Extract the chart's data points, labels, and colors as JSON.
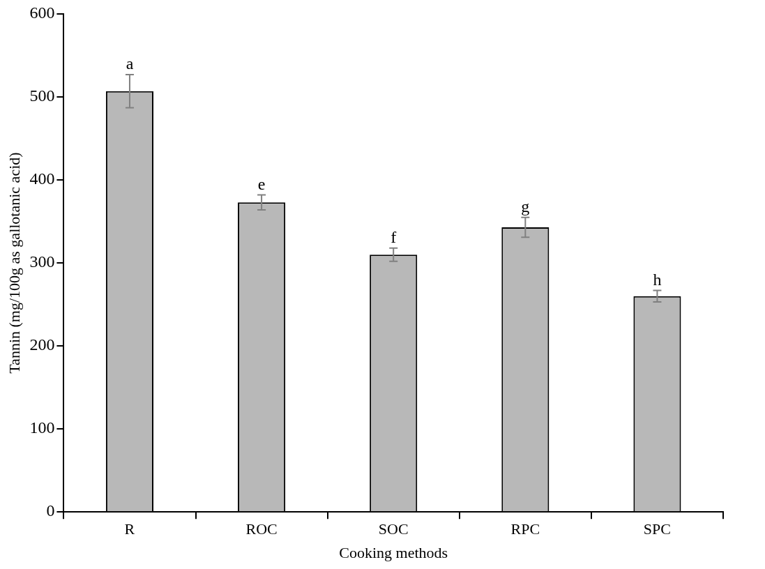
{
  "chart_data": {
    "type": "bar",
    "xlabel": "Cooking methods",
    "ylabel": "Tannin (mg/100g as gallotanic acid)",
    "categories": [
      "R",
      "ROC",
      "SOC",
      "RPC",
      "SPC"
    ],
    "values": [
      507,
      373,
      310,
      343,
      260
    ],
    "errors": [
      20,
      9,
      8,
      12,
      7
    ],
    "color": "#b8b8b8",
    "ylim": [
      0,
      600
    ],
    "yticks": [
      0,
      100,
      200,
      300,
      400,
      500,
      600
    ],
    "annotations": [
      {
        "text": "a",
        "x": "R",
        "y": 527
      },
      {
        "text": "e",
        "x": "ROC",
        "y": 382
      },
      {
        "text": "f",
        "x": "SOC",
        "y": 318
      },
      {
        "text": "g",
        "x": "RPC",
        "y": 355
      },
      {
        "text": "h",
        "x": "SPC",
        "y": 267
      }
    ]
  }
}
